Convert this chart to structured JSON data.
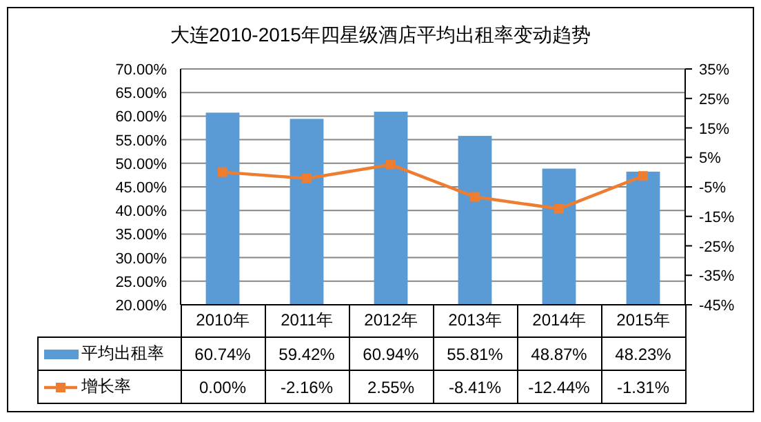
{
  "chart_data": {
    "type": "bar",
    "title": "大连2010-2015年四星级酒店平均出租率变动趋势",
    "categories": [
      "2010年",
      "2011年",
      "2012年",
      "2013年",
      "2014年",
      "2015年"
    ],
    "series": [
      {
        "name": "平均出租率",
        "color": "#5b9bd5",
        "values": [
          60.74,
          59.42,
          60.94,
          55.81,
          48.87,
          48.23
        ],
        "value_labels": [
          "60.74%",
          "59.42%",
          "60.94%",
          "55.81%",
          "48.87%",
          "48.23%"
        ]
      },
      {
        "name": "增长率",
        "type": "line",
        "axis": "y2",
        "color": "#ed7d31",
        "marker": "square",
        "values": [
          0.0,
          -2.16,
          2.55,
          -8.41,
          -12.44,
          -1.31
        ],
        "value_labels": [
          "0.00%",
          "-2.16%",
          "2.55%",
          "-8.41%",
          "-12.44%",
          "-1.31%"
        ]
      }
    ],
    "ylim": [
      20,
      70
    ],
    "yticks": [
      {
        "value": 20,
        "label": "20.00%"
      },
      {
        "value": 25,
        "label": "25.00%"
      },
      {
        "value": 30,
        "label": "30.00%"
      },
      {
        "value": 35,
        "label": "35.00%"
      },
      {
        "value": 40,
        "label": "40.00%"
      },
      {
        "value": 45,
        "label": "45.00%"
      },
      {
        "value": 50,
        "label": "50.00%"
      },
      {
        "value": 55,
        "label": "55.00%"
      },
      {
        "value": 60,
        "label": "60.00%"
      },
      {
        "value": 65,
        "label": "65.00%"
      },
      {
        "value": 70,
        "label": "70.00%"
      }
    ],
    "y2lim": [
      -45,
      35
    ],
    "y2ticks": [
      {
        "value": -45,
        "label": "-45%"
      },
      {
        "value": -35,
        "label": "-35%"
      },
      {
        "value": -25,
        "label": "-25%"
      },
      {
        "value": -15,
        "label": "-15%"
      },
      {
        "value": -5,
        "label": "-5%"
      },
      {
        "value": 5,
        "label": "5%"
      },
      {
        "value": 15,
        "label": "15%"
      },
      {
        "value": 25,
        "label": "25%"
      },
      {
        "value": 35,
        "label": "35%"
      }
    ],
    "grid": "y",
    "legend": "bottom"
  }
}
